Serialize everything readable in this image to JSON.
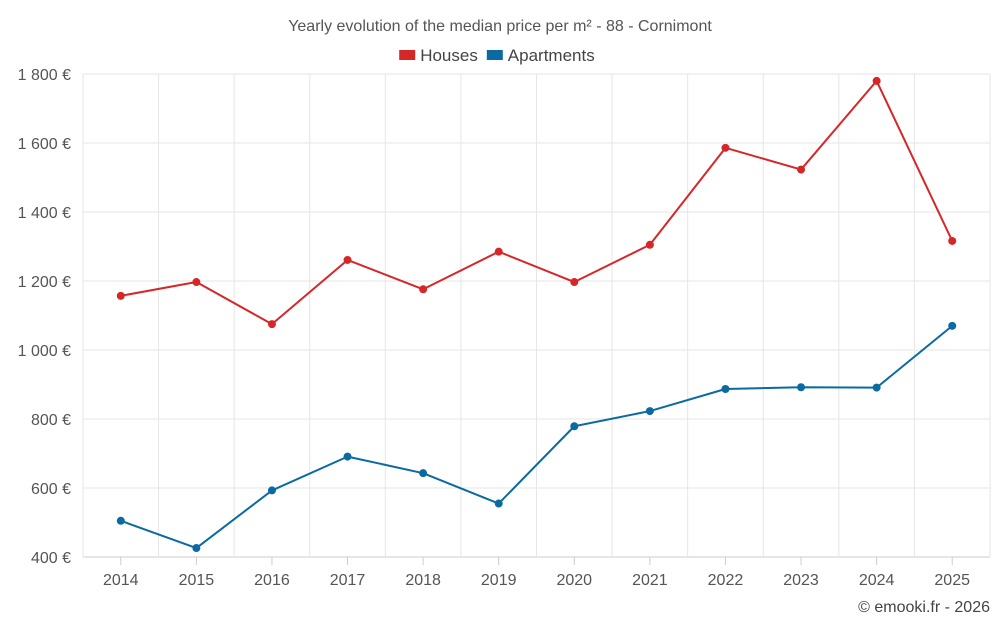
{
  "chart_data": {
    "type": "line",
    "title": "Yearly evolution of the median price per m² - 88 - Cornimont",
    "x": [
      "2014",
      "2015",
      "2016",
      "2017",
      "2018",
      "2019",
      "2020",
      "2021",
      "2022",
      "2023",
      "2024",
      "2025"
    ],
    "series": [
      {
        "name": "Houses",
        "color": "#d62728",
        "values": [
          1157,
          1197,
          1075,
          1261,
          1176,
          1285,
          1197,
          1305,
          1586,
          1523,
          1780,
          1316
        ]
      },
      {
        "name": "Apartments",
        "color": "#0a6aa1",
        "values": [
          505,
          426,
          593,
          691,
          643,
          555,
          779,
          823,
          887,
          892,
          891,
          1070
        ]
      }
    ],
    "ylim": [
      400,
      1800
    ],
    "yticks": [
      400,
      600,
      800,
      1000,
      1200,
      1400,
      1600,
      1800
    ],
    "ytick_labels": [
      "400 €",
      "600 €",
      "800 €",
      "1 000 €",
      "1 200 €",
      "1 400 €",
      "1 600 €",
      "1 800 €"
    ],
    "xlabel": "",
    "ylabel": "",
    "grid": true,
    "legend_position": "top-center"
  },
  "credit": "© emooki.fr - 2026"
}
